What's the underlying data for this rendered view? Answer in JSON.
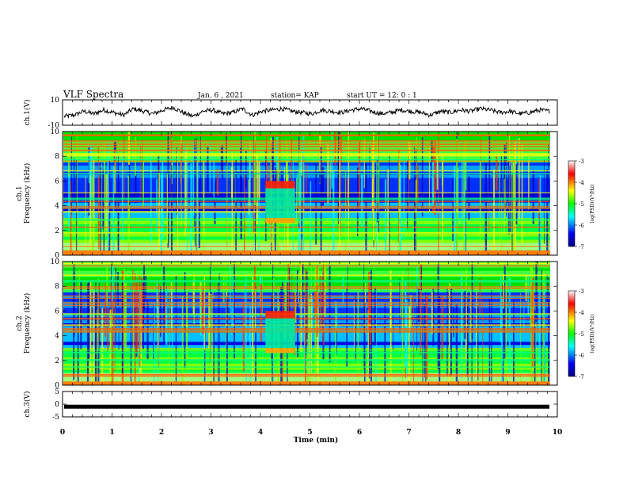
{
  "header": {
    "title": "VLF Spectra",
    "date": "Jan. 6 , 2021",
    "station": "station= KAP",
    "start": "start UT = 12: 0 : 1"
  },
  "chart_data": [
    {
      "type": "line",
      "panel": "ch1-waveform",
      "ylabel": "ch.1(V)",
      "ylim": [
        -10,
        10
      ],
      "yticks": [
        "10",
        "-10"
      ],
      "xlim": [
        0,
        10
      ],
      "description_values": "voltage trace oscillating roughly between -4 and 4 V",
      "series": [
        {
          "name": "ch.1",
          "values": [
            -3,
            -2,
            1,
            -1,
            2,
            0,
            -2,
            3,
            1,
            -1,
            2,
            4,
            0,
            -3,
            1,
            2,
            -1,
            0,
            3,
            -2,
            1,
            2,
            3,
            1,
            0,
            -1,
            2,
            1,
            0,
            2,
            3,
            1,
            -1,
            0,
            2,
            1,
            0,
            -2,
            1,
            0,
            2,
            1,
            3,
            2,
            0,
            1,
            -1,
            0,
            2,
            1
          ]
        }
      ],
      "color": "#000000"
    },
    {
      "type": "heatmap",
      "panel": "ch1-spectrogram",
      "ylabel": "ch.1\nFrequency (kHz)",
      "ylim": [
        0,
        10
      ],
      "xlim": [
        0,
        10
      ],
      "yticks": [
        "0",
        "2",
        "4",
        "6",
        "8",
        "10"
      ],
      "colorbar": {
        "label": "log(PSD)(V²/Hz)",
        "range": [
          -7,
          -3
        ],
        "ticks": [
          "-3",
          "-4",
          "-5",
          "-6",
          "-7"
        ]
      }
    },
    {
      "type": "heatmap",
      "panel": "ch2-spectrogram",
      "ylabel": "ch.2\nFrequency (kHz)",
      "ylim": [
        0,
        10
      ],
      "xlim": [
        0,
        10
      ],
      "yticks": [
        "0",
        "2",
        "4",
        "6",
        "8",
        "10"
      ],
      "colorbar": {
        "label": "log(PSD)(V²/Hz)",
        "range": [
          -7,
          -3
        ],
        "ticks": [
          "-3",
          "-4",
          "-5",
          "-6",
          "-7"
        ]
      }
    },
    {
      "type": "line",
      "panel": "ch3-waveform",
      "ylabel": "ch.3(V)",
      "ylim": [
        -5,
        5
      ],
      "yticks": [
        "5",
        "0",
        "-5"
      ],
      "xlim": [
        0,
        10
      ],
      "series": [
        {
          "name": "ch.3",
          "values": [
            -1,
            -1
          ]
        }
      ],
      "color": "#000000"
    }
  ],
  "x_axis": {
    "label": "Time (min)",
    "ticks": [
      "0",
      "1",
      "2",
      "3",
      "4",
      "5",
      "6",
      "7",
      "8",
      "9",
      "10"
    ]
  },
  "colors": {
    "low": "#0000ff",
    "mid": "#00ff00",
    "high": "#ff0000",
    "deep": "#000080",
    "top": "#ffffff"
  }
}
